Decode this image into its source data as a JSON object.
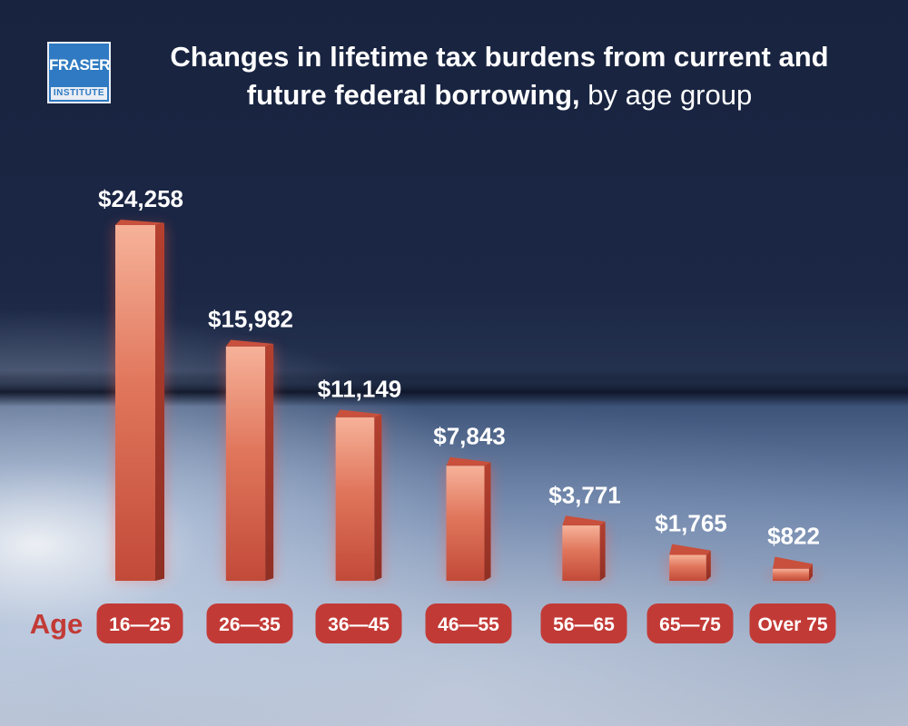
{
  "logo": {
    "name": "FRASER",
    "sub": "INSTITUTE"
  },
  "header": {
    "title_bold": "Changes in lifetime tax burdens from current and future federal borrowing,",
    "title_regular": "by age group"
  },
  "colors": {
    "bar": "#d95a45",
    "pill": "#c23a36",
    "age_text": "#c23a36"
  },
  "chart_data": {
    "type": "bar",
    "xlabel": "Age",
    "categories": [
      "16—25",
      "26—35",
      "36—45",
      "46—55",
      "56—65",
      "65—75",
      "Over 75"
    ],
    "values": [
      24258,
      15982,
      11149,
      7843,
      3771,
      1765,
      822
    ],
    "value_labels": [
      "$24,258",
      "$15,982",
      "$11,149",
      "$7,843",
      "$3,771",
      "$1,765",
      "$822"
    ]
  }
}
